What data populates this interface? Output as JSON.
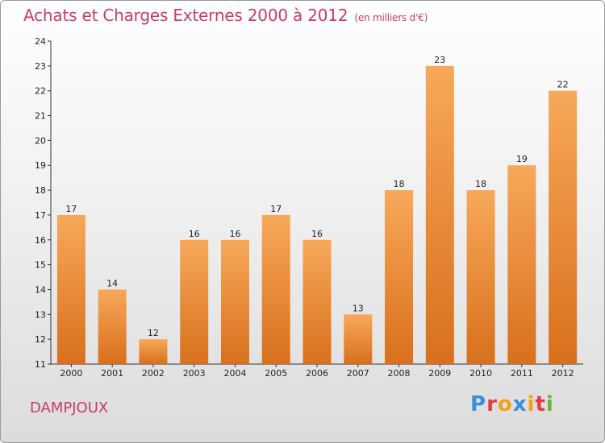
{
  "header": {
    "title": "Achats et Charges Externes 2000 à 2012",
    "unit": "(en milliers d'€)"
  },
  "footer": {
    "commune": "DAMPJOUX",
    "logo_letters": [
      "P",
      "r",
      "o",
      "x",
      "i",
      "t",
      "i"
    ],
    "logo_colors": [
      "#3a8fd9",
      "#e23c4a",
      "#f4a11a",
      "#3a8fd9",
      "#f4a11a",
      "#e23c4a",
      "#69b53a"
    ]
  },
  "colors": {
    "bar_top": "#f7a85a",
    "bar_bottom": "#d8701c",
    "title": "#c93a6a"
  },
  "chart_data": {
    "type": "bar",
    "title": "Achats et Charges Externes 2000 à 2012",
    "subtitle": "(en milliers d'€)",
    "xlabel": "",
    "ylabel": "",
    "categories": [
      "2000",
      "2001",
      "2002",
      "2003",
      "2004",
      "2005",
      "2006",
      "2007",
      "2008",
      "2009",
      "2010",
      "2011",
      "2012"
    ],
    "values": [
      17,
      14,
      12,
      16,
      16,
      17,
      16,
      13,
      18,
      23,
      18,
      19,
      22
    ],
    "ylim": [
      11,
      24
    ],
    "yticks": [
      11,
      12,
      13,
      14,
      15,
      16,
      17,
      18,
      19,
      20,
      21,
      22,
      23,
      24
    ],
    "grid": false,
    "legend": "none"
  }
}
